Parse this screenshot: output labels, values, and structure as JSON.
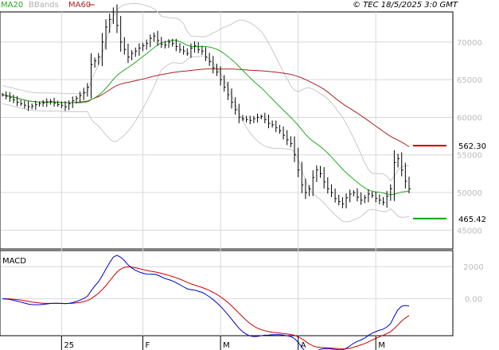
{
  "chart_data": [
    {
      "type": "line",
      "subtype": "ohlc",
      "legend": [
        {
          "name": "MA20",
          "color": "#22aa22"
        },
        {
          "name": "BBands",
          "color": "#c0c0c0"
        },
        {
          "name": "MA60",
          "color": "#aa2222"
        }
      ],
      "copyright": "© TEC 18/5/2025 3:0 GMT",
      "y_ticks": [
        {
          "value": 450,
          "label": "45000"
        },
        {
          "value": 500,
          "label": "50000"
        },
        {
          "value": 550,
          "label": "55000"
        },
        {
          "value": 600,
          "label": "60000"
        },
        {
          "value": 650,
          "label": "65000"
        },
        {
          "value": 700,
          "label": "70000"
        }
      ],
      "ylim": [
        425,
        740
      ],
      "x_ticks": [
        {
          "index": 16,
          "label": "25"
        },
        {
          "index": 38,
          "label": "F"
        },
        {
          "index": 59,
          "label": "M"
        },
        {
          "index": 80,
          "label": "A"
        },
        {
          "index": 101,
          "label": "M"
        }
      ],
      "resistance": {
        "value": 562.3,
        "label": "562.30",
        "color": "#cc0000"
      },
      "support": {
        "value": 465.42,
        "label": "465.42",
        "color": "#00aa00"
      },
      "close": [
        630,
        628,
        626,
        623,
        620,
        618,
        616,
        614,
        615,
        617,
        618,
        619,
        620,
        621,
        619,
        617,
        616,
        614,
        618,
        622,
        625,
        629,
        633,
        640,
        670,
        675,
        680,
        700,
        720,
        730,
        740,
        722,
        700,
        690,
        680,
        685,
        688,
        692,
        695,
        698,
        705,
        708,
        702,
        697,
        696,
        700,
        698,
        694,
        690,
        688,
        685,
        692,
        695,
        690,
        688,
        680,
        674,
        666,
        660,
        650,
        640,
        630,
        620,
        610,
        600,
        598,
        597,
        596,
        598,
        600,
        601,
        597,
        592,
        590,
        586,
        582,
        576,
        570,
        565,
        550,
        530,
        510,
        500,
        505,
        520,
        530,
        525,
        514,
        505,
        500,
        492,
        488,
        485,
        493,
        498,
        500,
        494,
        490,
        493,
        498,
        496,
        492,
        490,
        487,
        495,
        505,
        540,
        545,
        530,
        515,
        505
      ]
    },
    {
      "type": "line",
      "title": "MACD",
      "y_ticks": [
        {
          "value": 2000,
          "label": "2000"
        },
        {
          "value": 0,
          "label": "0.00"
        }
      ],
      "ylim": [
        -2300,
        3000
      ]
    }
  ]
}
